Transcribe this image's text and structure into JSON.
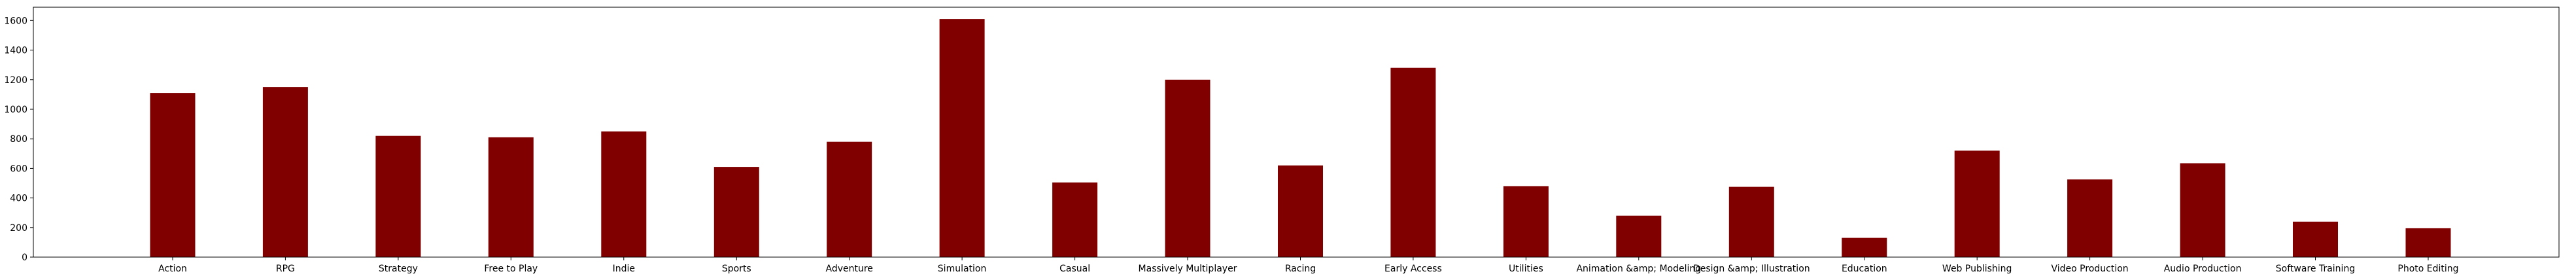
{
  "chart_data": {
    "type": "bar",
    "categories": [
      "Action",
      "RPG",
      "Strategy",
      "Free to Play",
      "Indie",
      "Sports",
      "Adventure",
      "Simulation",
      "Casual",
      "Massively Multiplayer",
      "Racing",
      "Early Access",
      "Utilities",
      "Animation &amp; Modeling",
      "Design &amp; Illustration",
      "Education",
      "Web Publishing",
      "Video Production",
      "Audio Production",
      "Software Training",
      "Photo Editing"
    ],
    "values": [
      1110,
      1150,
      820,
      810,
      850,
      610,
      780,
      1610,
      505,
      1200,
      620,
      1280,
      480,
      280,
      475,
      130,
      720,
      525,
      635,
      240,
      195
    ],
    "title": "",
    "xlabel": "",
    "ylabel": "",
    "ylim": [
      0,
      1690
    ],
    "yticks": [
      0,
      200,
      400,
      600,
      800,
      1000,
      1200,
      1400,
      1600
    ],
    "grid": false,
    "legend": "none",
    "bar_color": "#800000"
  }
}
